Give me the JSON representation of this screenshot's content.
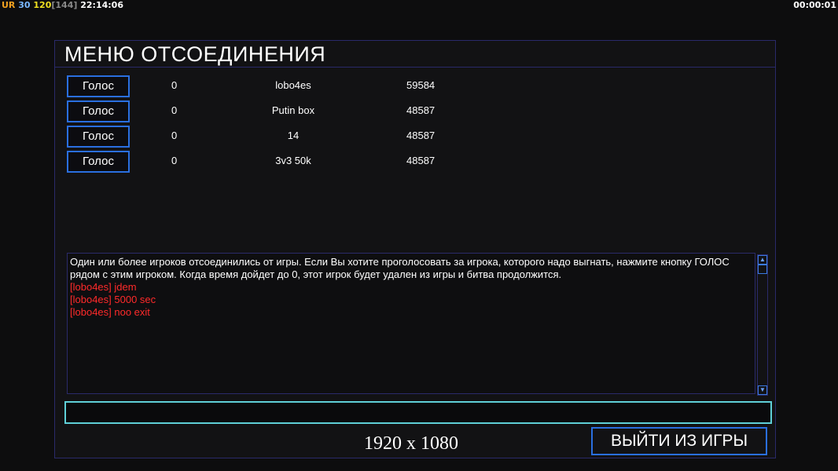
{
  "hud": {
    "ur": "UR",
    "fps": "30",
    "max": "120",
    "bracket": "[144]",
    "clock": "22:14:06",
    "timer": "00:00:01"
  },
  "title": "МЕНЮ ОТСОЕДИНЕНИЯ",
  "players": [
    {
      "button": "Голос",
      "votes": "0",
      "name": "lobo4es",
      "value": "59584"
    },
    {
      "button": "Голос",
      "votes": "0",
      "name": "Putin box",
      "value": "48587"
    },
    {
      "button": "Голос",
      "votes": "0",
      "name": "14",
      "value": "48587"
    },
    {
      "button": "Голос",
      "votes": "0",
      "name": "3v3 50k",
      "value": "48587"
    }
  ],
  "chat": {
    "info": "Один или более игроков отсоединились от игры. Если Вы хотите проголосовать за игрока, которого надо выгнать, нажмите кнопку  ГОЛОС рядом с этим игроком. Когда время дойдет до 0, этот игрок будет удален из игры и битва продолжится.",
    "messages": [
      "[lobo4es] jdem",
      "[lobo4es] 5000 sec",
      "[lobo4es] noo exit"
    ]
  },
  "input_value": "",
  "exit_button": "ВЫЙТИ ИЗ ИГРЫ",
  "resolution": "1920 x 1080",
  "colors": {
    "accent": "#2a6fe0",
    "chat_red": "#ff2a2a",
    "input_border": "#5fd0d8"
  }
}
